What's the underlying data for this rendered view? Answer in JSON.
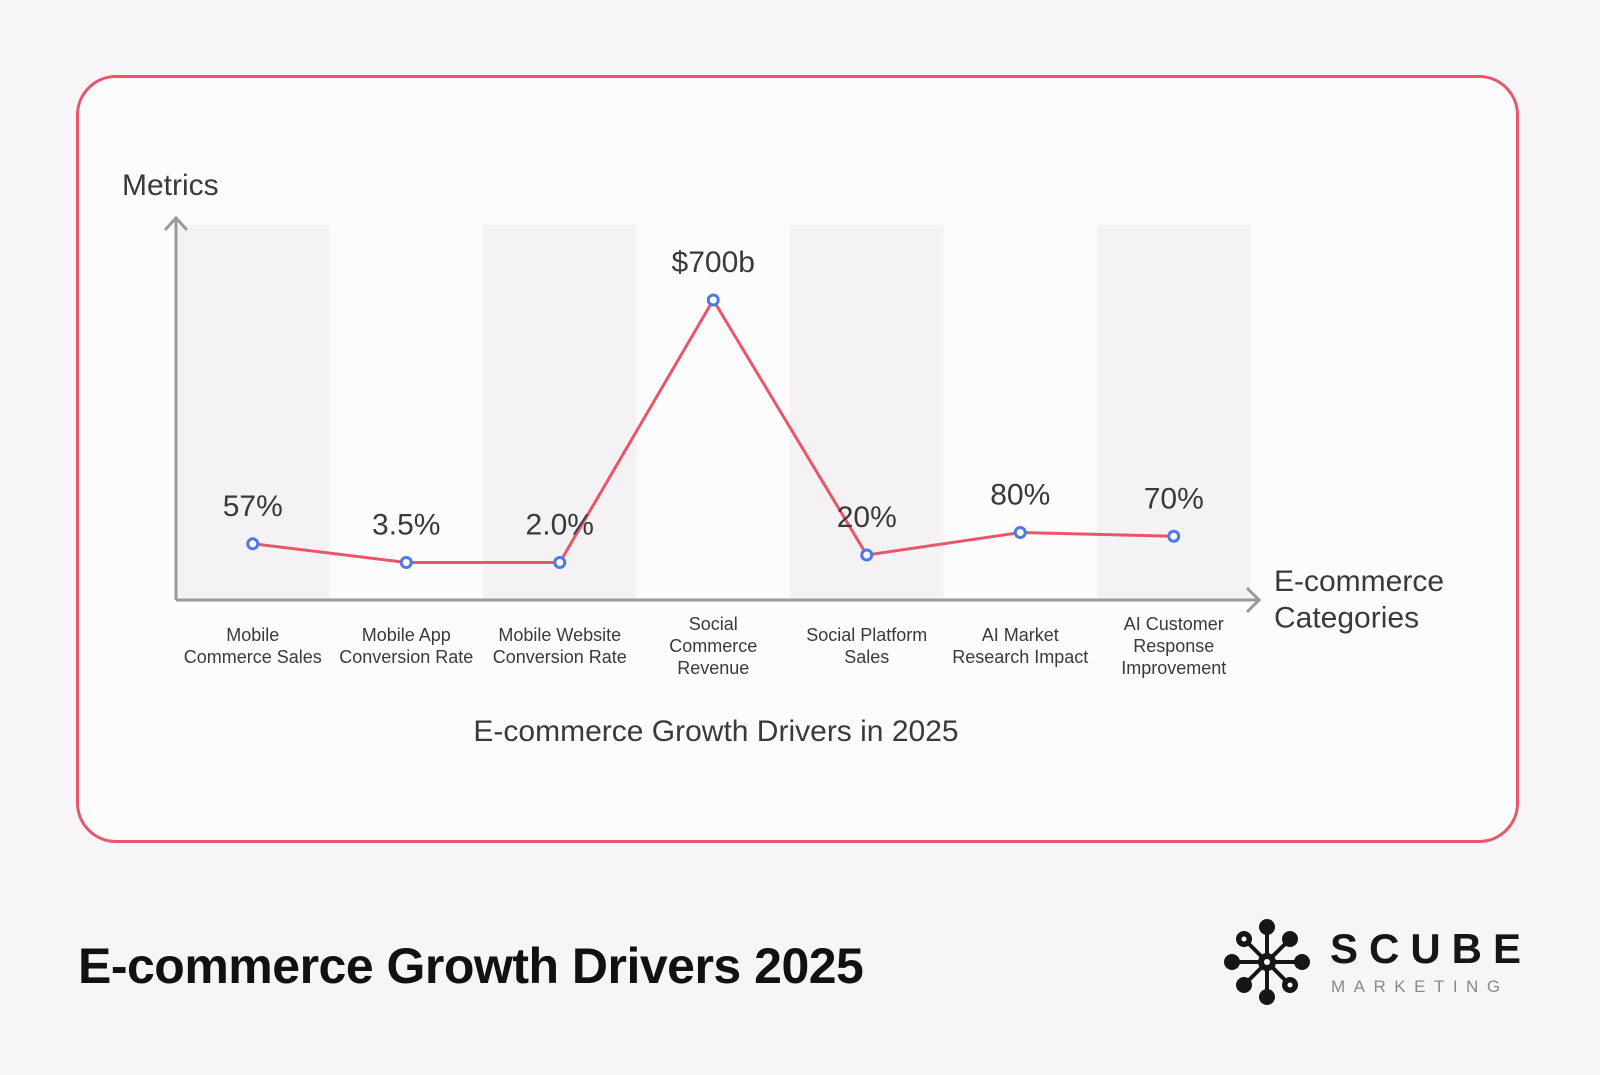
{
  "colors": {
    "accent": "#e8566b",
    "point": "#4f79e6",
    "band": "#f4f2f5",
    "axis": "#9a9a9a",
    "text": "#3a3a3a"
  },
  "page": {
    "title": "E-commerce Growth Drivers 2025"
  },
  "brand": {
    "name": "SCUBE",
    "tagline": "MARKETING"
  },
  "chart_data": {
    "type": "line",
    "title": "E-commerce Growth Drivers in 2025",
    "ylabel": "Metrics",
    "xlabel": [
      "E-commerce",
      "Categories"
    ],
    "categories": [
      [
        "Mobile",
        "Commerce Sales"
      ],
      [
        "Mobile App",
        "Conversion Rate"
      ],
      [
        "Mobile Website",
        "Conversion Rate"
      ],
      [
        "Social",
        "Commerce",
        "Revenue"
      ],
      [
        "Social Platform",
        "Sales"
      ],
      [
        "AI Market",
        "Research Impact"
      ],
      [
        "AI Customer",
        "Response",
        "Improvement"
      ]
    ],
    "value_labels": [
      "57%",
      "3.5%",
      "2.0%",
      "$700b",
      "20%",
      "80%",
      "70%"
    ],
    "relative_heights": [
      0.15,
      0.1,
      0.1,
      0.8,
      0.12,
      0.18,
      0.17
    ],
    "grid": false,
    "alternating_bands": true
  }
}
